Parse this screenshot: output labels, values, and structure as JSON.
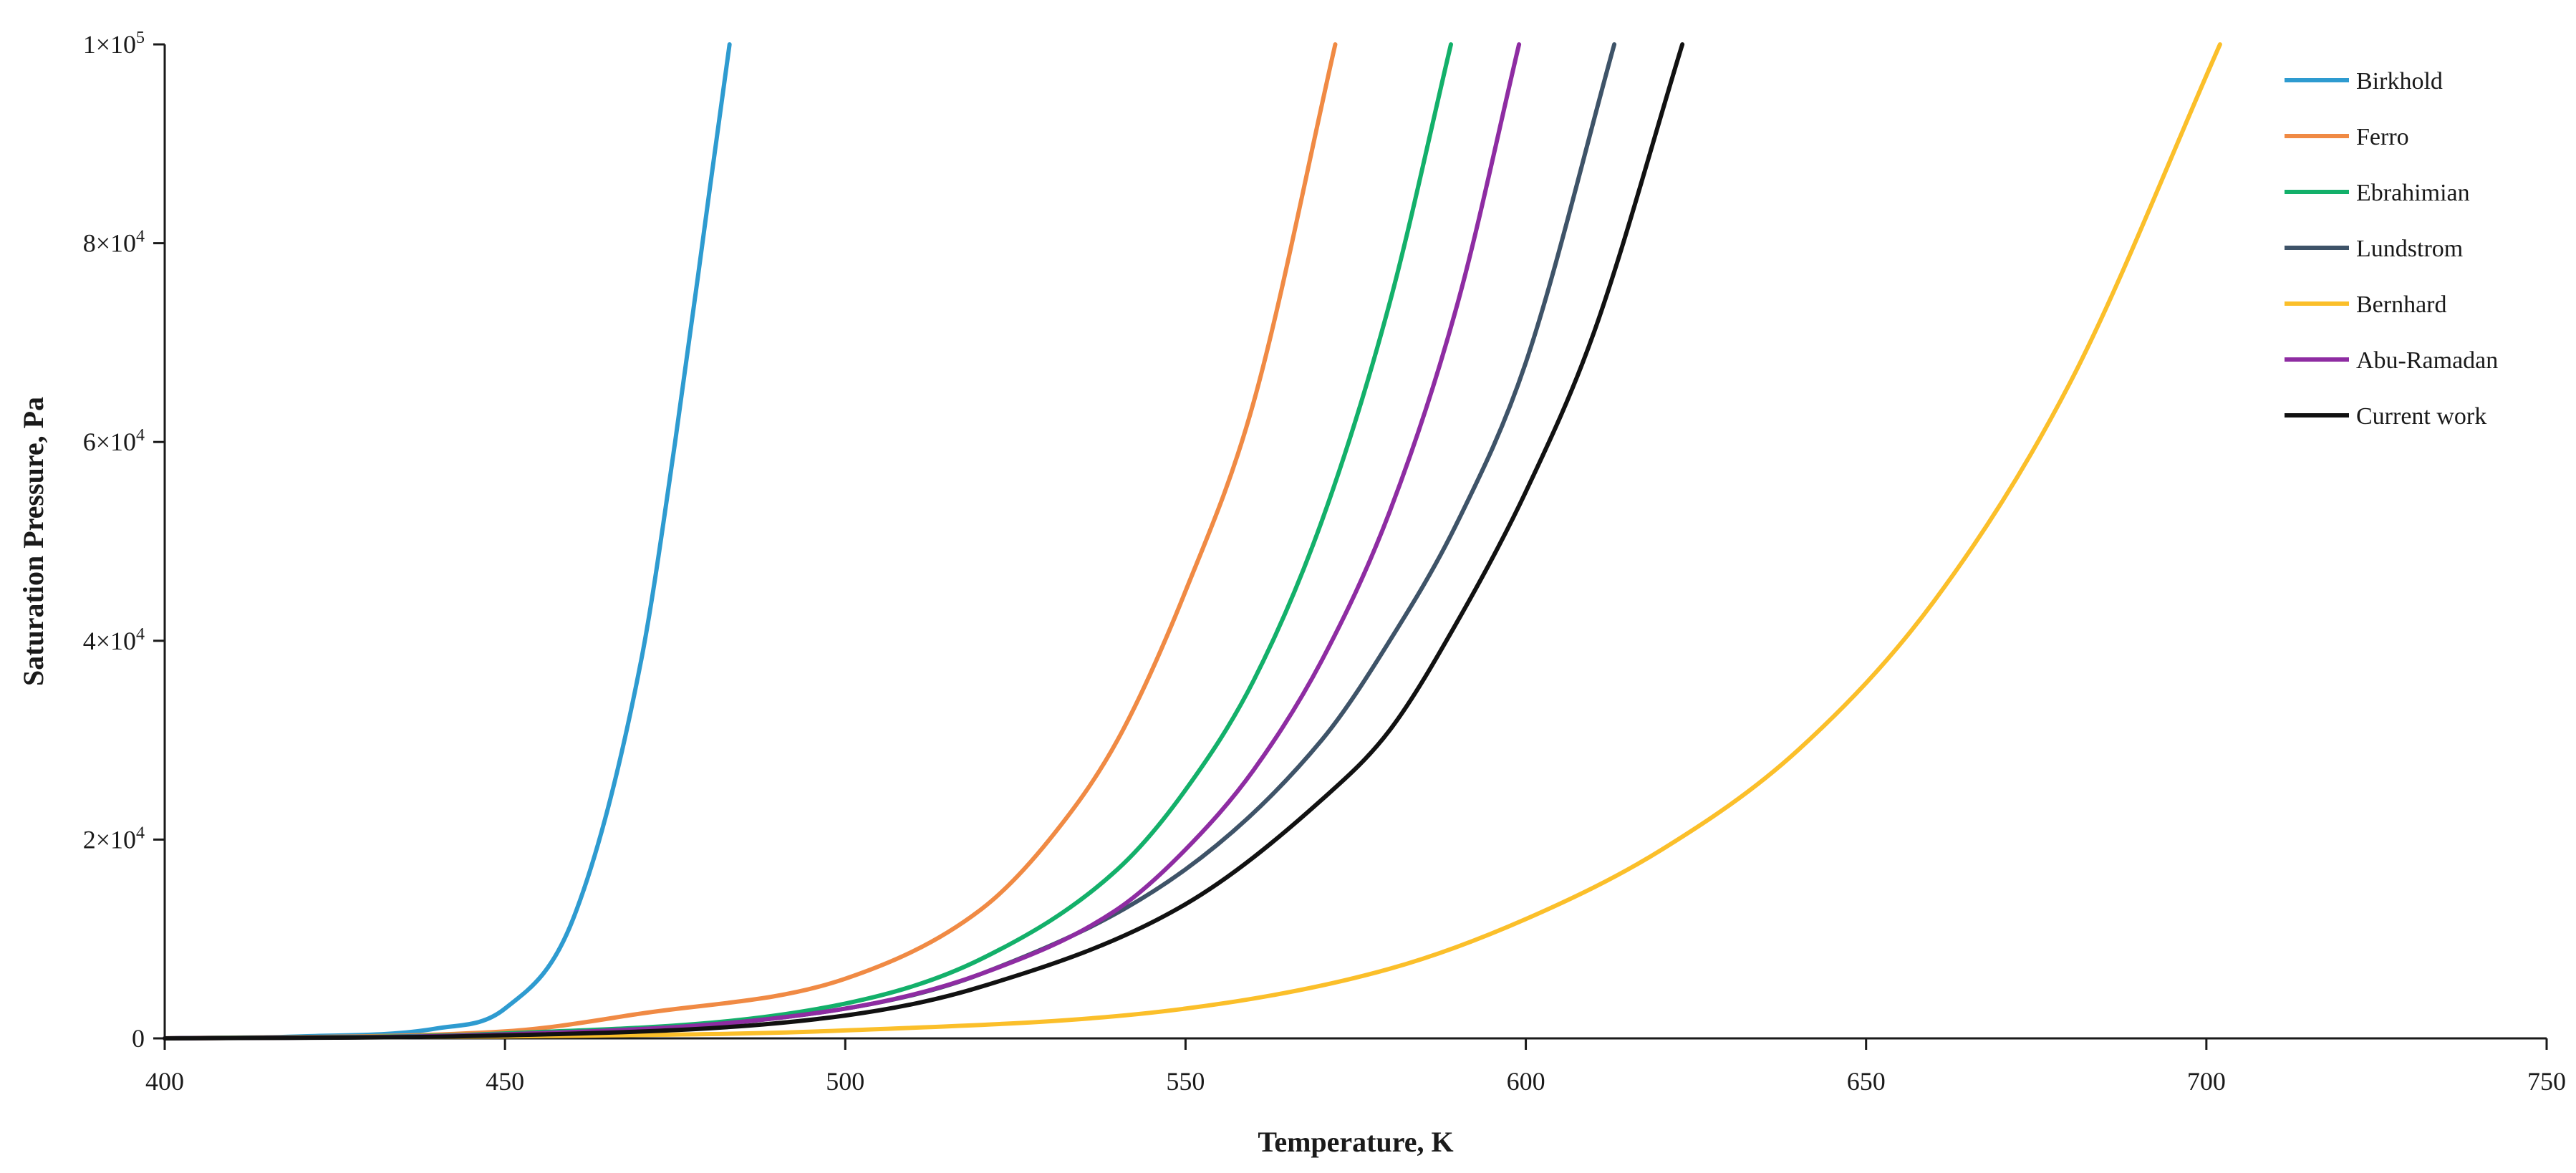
{
  "chart_data": {
    "type": "line",
    "title": "",
    "xlabel": "Temperature, K",
    "ylabel": "Saturation Pressure, Pa",
    "xlim": [
      400,
      750
    ],
    "ylim": [
      0,
      100000
    ],
    "grid": false,
    "legend_position": "top-right",
    "x_ticks": [
      400,
      450,
      500,
      550,
      600,
      650,
      700,
      750
    ],
    "x_tick_labels": [
      "400",
      "450",
      "500",
      "550",
      "600",
      "650",
      "700",
      "750"
    ],
    "y_ticks": [
      {
        "value": 0,
        "mantissa": "0",
        "exponent": ""
      },
      {
        "value": 20000,
        "mantissa": "2",
        "exponent": "4"
      },
      {
        "value": 40000,
        "mantissa": "4",
        "exponent": "4"
      },
      {
        "value": 60000,
        "mantissa": "6",
        "exponent": "4"
      },
      {
        "value": 80000,
        "mantissa": "8",
        "exponent": "4"
      },
      {
        "value": 100000,
        "mantissa": "1",
        "exponent": "5"
      }
    ],
    "series": [
      {
        "name": "Birkhold",
        "color": "#2e9bd0",
        "x": [
          400,
          420,
          440,
          450,
          460,
          470,
          475,
          480,
          483
        ],
        "y": [
          0,
          200,
          1000,
          3000,
          12000,
          38000,
          60000,
          85000,
          100000
        ]
      },
      {
        "name": "Ferro",
        "color": "#f08a44",
        "x": [
          400,
          450,
          470,
          500,
          520,
          530,
          540,
          550,
          560,
          572
        ],
        "y": [
          0,
          700,
          2500,
          6000,
          13000,
          20000,
          30000,
          45000,
          64000,
          100000
        ]
      },
      {
        "name": "Ebrahimian",
        "color": "#13b06a",
        "x": [
          400,
          450,
          500,
          520,
          540,
          550,
          560,
          570,
          580,
          589
        ],
        "y": [
          0,
          500,
          3500,
          8000,
          17000,
          25000,
          36000,
          52000,
          74000,
          100000
        ]
      },
      {
        "name": "Lundstrom",
        "color": "#3e5368",
        "x": [
          400,
          450,
          500,
          520,
          550,
          570,
          580,
          590,
          600,
          613
        ],
        "y": [
          0,
          400,
          3000,
          6500,
          17000,
          30000,
          40000,
          52000,
          68000,
          100000
        ]
      },
      {
        "name": "Bernhard",
        "color": "#fbbf2a",
        "x": [
          400,
          450,
          500,
          550,
          580,
          600,
          620,
          640,
          660,
          680,
          702
        ],
        "y": [
          0,
          200,
          800,
          3000,
          7000,
          12000,
          19000,
          29000,
          44000,
          66000,
          100000
        ]
      },
      {
        "name": "Abu-Ramadan",
        "color": "#8e2ca2",
        "x": [
          400,
          450,
          500,
          520,
          540,
          550,
          560,
          570,
          580,
          590,
          599
        ],
        "y": [
          0,
          400,
          3000,
          6500,
          13000,
          19000,
          27000,
          38000,
          53000,
          74000,
          100000
        ]
      },
      {
        "name": "Current work",
        "color": "#111111",
        "x": [
          400,
          450,
          500,
          520,
          550,
          570,
          580,
          590,
          600,
          610,
          623
        ],
        "y": [
          0,
          300,
          2300,
          5200,
          13500,
          24000,
          31000,
          42000,
          55000,
          71000,
          100000
        ]
      }
    ]
  }
}
